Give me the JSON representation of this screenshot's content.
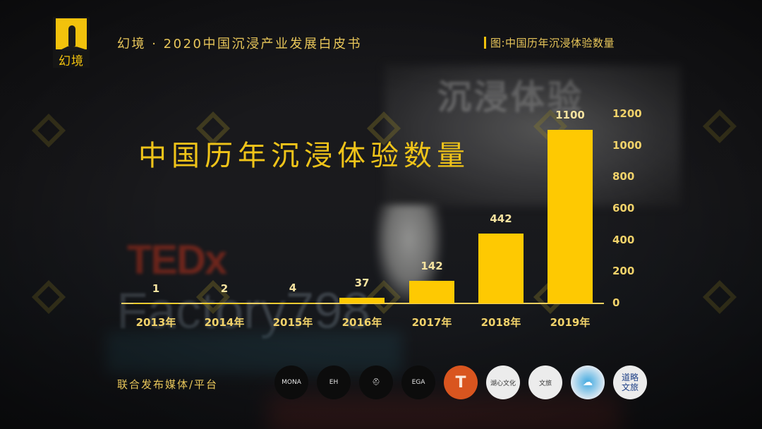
{
  "header": {
    "logo_text": "幻境",
    "title": "幻境 · 2020中国沉浸产业发展白皮书",
    "figure_caption": "图:中国历年沉浸体验数量"
  },
  "main_title": "中国历年沉浸体验数量",
  "background": {
    "screen_text": "沉浸体验",
    "tedx_text": "TEDx",
    "factory_text": "Factory798"
  },
  "chart_data": {
    "type": "bar",
    "title": "中国历年沉浸体验数量",
    "xlabel": "",
    "ylabel": "",
    "categories": [
      "2013年",
      "2014年",
      "2015年",
      "2016年",
      "2017年",
      "2018年",
      "2019年"
    ],
    "values": [
      1,
      2,
      4,
      37,
      142,
      442,
      1100
    ],
    "data_labels": [
      "1",
      "2",
      "4",
      "37",
      "142",
      "442",
      "1100"
    ],
    "ylim": [
      0,
      1200
    ],
    "y_ticks": [
      "0",
      "200",
      "400",
      "600",
      "800",
      "1000",
      "1200"
    ],
    "y_axis_position": "right",
    "grid": false,
    "legend": null,
    "bar_color": "#fec902"
  },
  "footer": {
    "label": "联合发布媒体/平台",
    "partners": [
      {
        "name": "MONA",
        "text": "MONA"
      },
      {
        "name": "EH",
        "text": "EH"
      },
      {
        "name": "VR headset logo",
        "text": "⛑"
      },
      {
        "name": "EGA",
        "text": "EGA"
      },
      {
        "name": "T logo",
        "text": "T"
      },
      {
        "name": "湖心文化",
        "text": "湖心文化"
      },
      {
        "name": "deer logo",
        "text": "文旅"
      },
      {
        "name": "cloud logo",
        "text": "☁"
      },
      {
        "name": "道略文旅",
        "text": "道略文旅"
      }
    ]
  }
}
